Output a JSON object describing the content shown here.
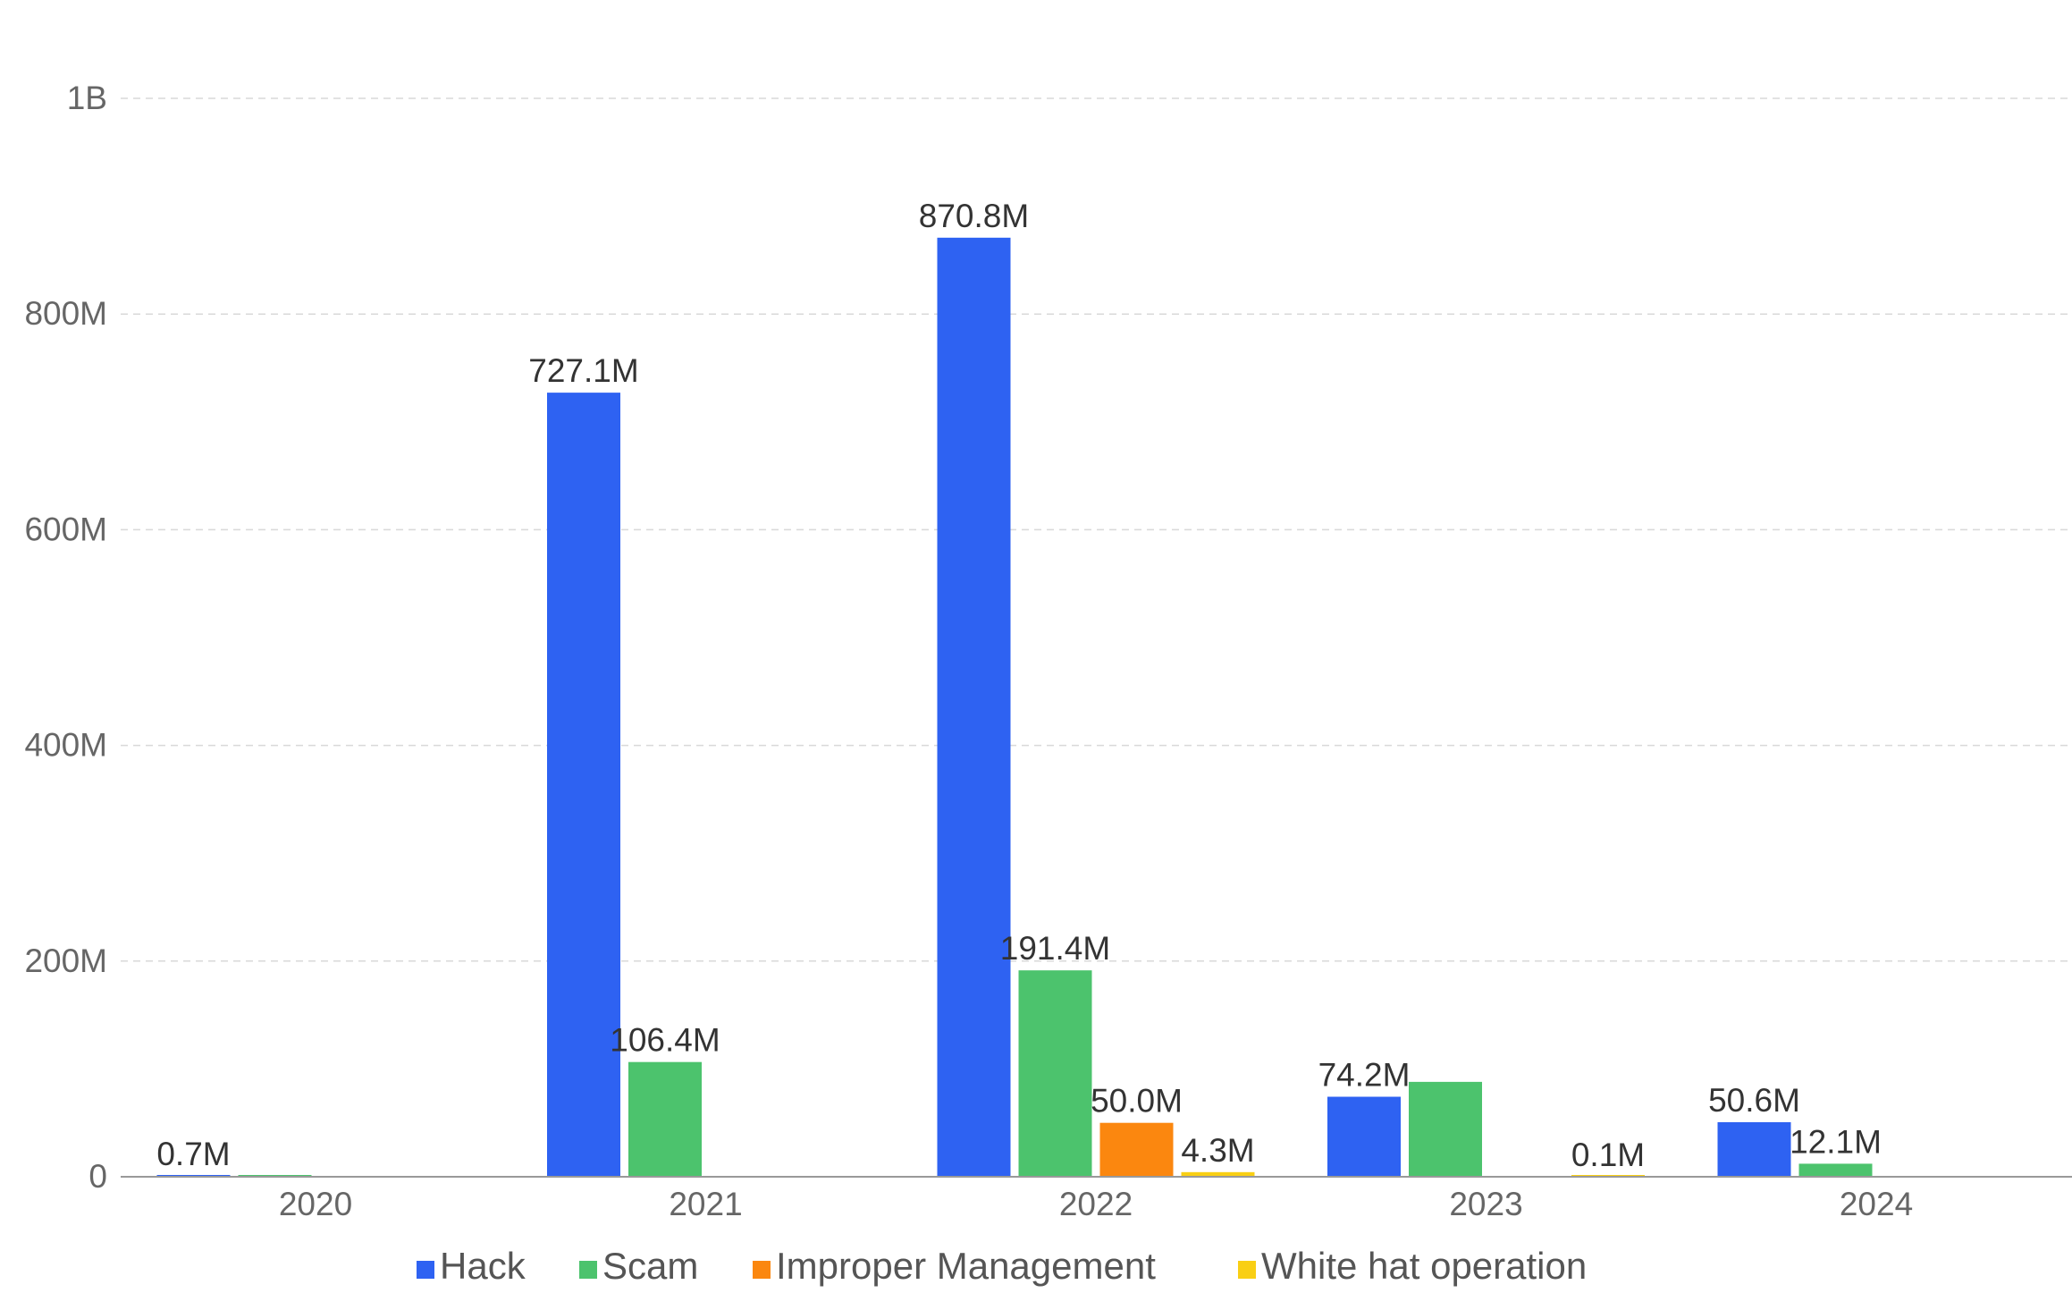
{
  "chart_data": {
    "type": "bar",
    "title": "",
    "xlabel": "",
    "ylabel": "",
    "categories": [
      "2020",
      "2021",
      "2022",
      "2023",
      "2024"
    ],
    "ylim": [
      0,
      1000000000
    ],
    "yticks": [
      {
        "value": 0,
        "label": "0"
      },
      {
        "value": 200000000,
        "label": "200M"
      },
      {
        "value": 400000000,
        "label": "400M"
      },
      {
        "value": 600000000,
        "label": "600M"
      },
      {
        "value": 800000000,
        "label": "800M"
      },
      {
        "value": 1000000000,
        "label": "1B"
      }
    ],
    "grid": true,
    "legend_position": "bottom",
    "series": [
      {
        "name": "Hack",
        "color": "#2e62f2",
        "values": [
          700000,
          727100000,
          870800000,
          74200000,
          50600000
        ],
        "labels": [
          "0.7M",
          "727.1M",
          "870.8M",
          "74.2M",
          "50.6M"
        ]
      },
      {
        "name": "Scam",
        "color": "#4cc36d",
        "values": [
          300000,
          106400000,
          191400000,
          88000000,
          12100000
        ],
        "labels": [
          "",
          "106.4M",
          "191.4M",
          "",
          "12.1M"
        ]
      },
      {
        "name": "Improper Management",
        "color": "#fb870f",
        "values": [
          0,
          0,
          50000000,
          0,
          0
        ],
        "labels": [
          "",
          "",
          "50.0M",
          "",
          ""
        ]
      },
      {
        "name": "White hat operation",
        "color": "#f9cf14",
        "values": [
          0,
          0,
          4300000,
          100000,
          0
        ],
        "labels": [
          "",
          "",
          "4.3M",
          "0.1M",
          ""
        ]
      }
    ]
  }
}
